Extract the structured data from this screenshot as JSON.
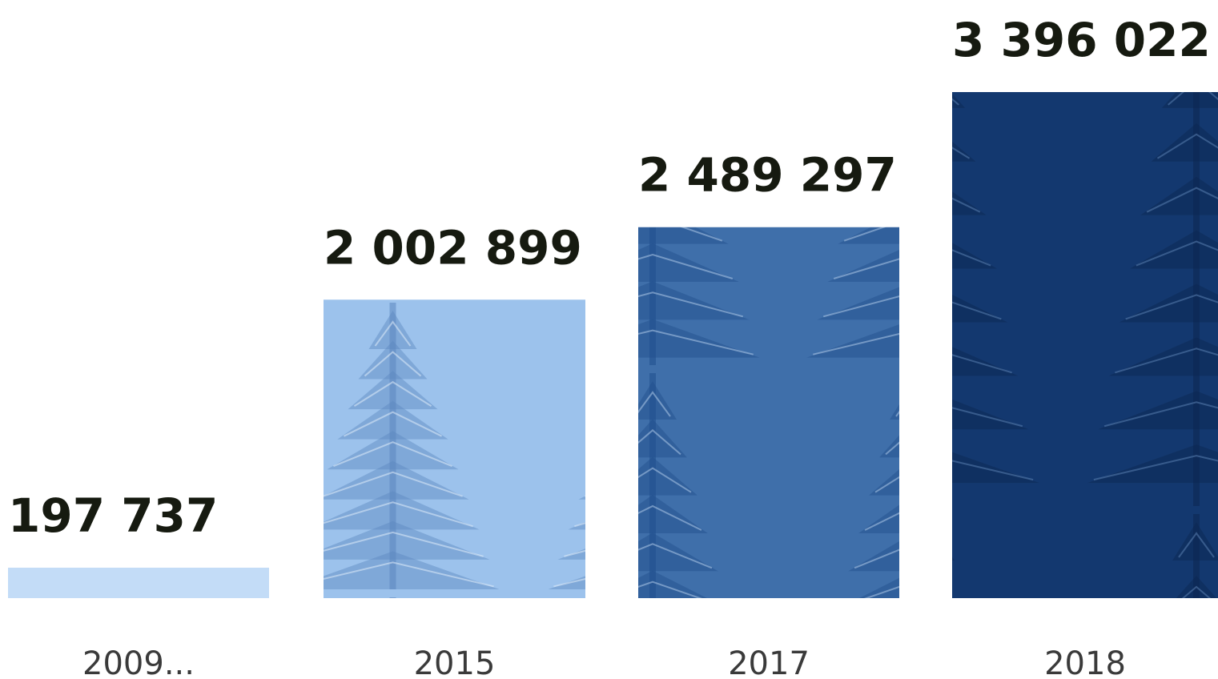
{
  "chart_data": {
    "type": "bar",
    "categories": [
      "2009...",
      "2015",
      "2017",
      "2018"
    ],
    "values": [
      197737,
      2002899,
      2489297,
      3396022
    ],
    "value_labels": [
      "197 737",
      "2 002 899",
      "2 489 297",
      "3 396 022"
    ],
    "title": "",
    "xlabel": "",
    "ylabel": "",
    "ylim": [
      0,
      3396022
    ],
    "grid": false,
    "legend": "none",
    "bar_fill": "pictorial-forest",
    "colors": [
      "#c3dcf7",
      "#9cc2ec",
      "#3f6faa",
      "#13386f"
    ]
  }
}
